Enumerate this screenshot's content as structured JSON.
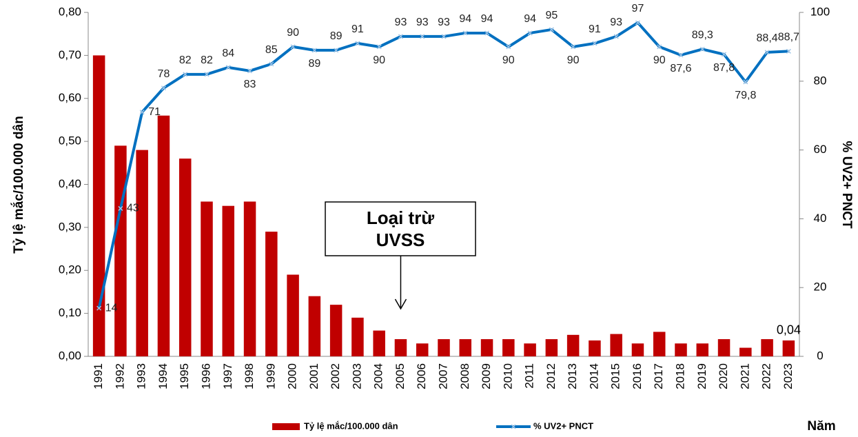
{
  "chart_data": {
    "type": "bar",
    "categories": [
      "1991",
      "1992",
      "1993",
      "1994",
      "1995",
      "1996",
      "1997",
      "1998",
      "1999",
      "2000",
      "2001",
      "2002",
      "2003",
      "2004",
      "2005",
      "2006",
      "2007",
      "2008",
      "2009",
      "2010",
      "2011",
      "2012",
      "2013",
      "2014",
      "2015",
      "2016",
      "2017",
      "2018",
      "2019",
      "2020",
      "2021",
      "2022",
      "2023"
    ],
    "series": [
      {
        "name": "Tỷ lệ mắc/100.000 dân",
        "type": "bar",
        "color": "#c00000",
        "values": [
          0.7,
          0.49,
          0.48,
          0.56,
          0.46,
          0.36,
          0.35,
          0.36,
          0.29,
          0.19,
          0.14,
          0.12,
          0.09,
          0.06,
          0.04,
          0.03,
          0.04,
          0.04,
          0.04,
          0.04,
          0.03,
          0.04,
          0.05,
          0.037,
          0.052,
          0.03,
          0.057,
          0.03,
          0.03,
          0.04,
          0.02,
          0.04,
          0.037
        ],
        "value_labels": [
          null,
          null,
          null,
          null,
          null,
          null,
          null,
          null,
          null,
          null,
          null,
          null,
          null,
          null,
          null,
          null,
          null,
          null,
          null,
          null,
          null,
          null,
          null,
          null,
          null,
          null,
          null,
          null,
          null,
          null,
          null,
          null,
          "0,04"
        ]
      },
      {
        "name": "% UV2+ PNCT",
        "type": "line",
        "axis": "y2",
        "color": "#0070c0",
        "values": [
          14,
          43,
          71,
          78,
          82,
          82,
          84,
          83,
          85,
          90,
          89,
          89,
          91,
          90,
          93,
          93,
          93,
          94,
          94,
          90,
          94,
          95,
          90,
          91,
          93,
          97,
          90,
          87.6,
          89.3,
          87.8,
          79.8,
          88.4,
          88.7
        ],
        "value_labels": [
          "14",
          "43",
          "71",
          "78",
          "82",
          "82",
          "84",
          "83",
          "85",
          "90",
          "89",
          "89",
          "91",
          "90",
          "93",
          "93",
          "93",
          "94",
          "94",
          "90",
          "94",
          "95",
          "90",
          "91",
          "93",
          "97",
          "90",
          "87,6",
          "89,3",
          "87,8",
          "79,8",
          "88,4",
          "88,7"
        ]
      }
    ],
    "ylabel": "Tỷ lệ mắc/100.000 dân",
    "y2label": "% UV2+ PNCT",
    "xlabel": "Năm",
    "ylim": [
      0,
      0.8
    ],
    "yticks": [
      {
        "value": 0,
        "label": "0,00"
      },
      {
        "value": 0.1,
        "label": "0,10"
      },
      {
        "value": 0.2,
        "label": "0,20"
      },
      {
        "value": 0.3,
        "label": "0,30"
      },
      {
        "value": 0.4,
        "label": "0,40"
      },
      {
        "value": 0.5,
        "label": "0,50"
      },
      {
        "value": 0.6,
        "label": "0,60"
      },
      {
        "value": 0.7,
        "label": "0,70"
      },
      {
        "value": 0.8,
        "label": "0,80"
      }
    ],
    "y2lim": [
      0,
      100
    ],
    "y2ticks": [
      0,
      20,
      40,
      60,
      80,
      100
    ],
    "annotation": {
      "lines": [
        "Loại trừ",
        "UVSS"
      ],
      "category": "2005"
    },
    "legend": "bottom"
  }
}
